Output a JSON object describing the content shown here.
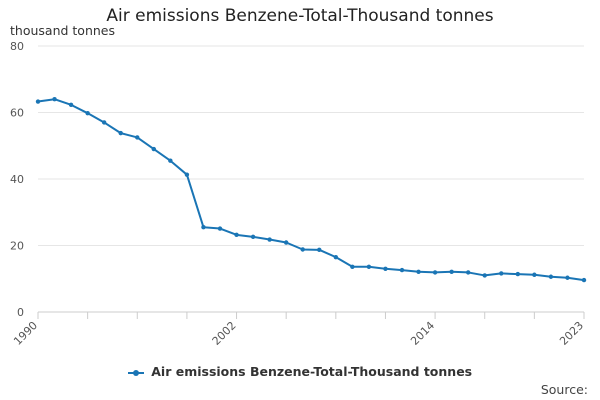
{
  "chart_data": {
    "type": "line",
    "title": "Air emissions Benzene-Total-Thousand tonnes",
    "ylabel": "thousand tonnes",
    "xlabel": "",
    "ylim": [
      0,
      80
    ],
    "yticks": [
      0,
      20,
      40,
      60,
      80
    ],
    "xlim": [
      1990,
      2023
    ],
    "xtick_labels": [
      "1990",
      "2002",
      "2014",
      "2023"
    ],
    "x": [
      1990,
      1991,
      1992,
      1993,
      1994,
      1995,
      1996,
      1997,
      1998,
      1999,
      2000,
      2001,
      2002,
      2003,
      2004,
      2005,
      2006,
      2007,
      2008,
      2009,
      2010,
      2011,
      2012,
      2013,
      2014,
      2015,
      2016,
      2017,
      2018,
      2019,
      2020,
      2021,
      2022,
      2023
    ],
    "series": [
      {
        "name": "Air emissions Benzene-Total-Thousand tonnes",
        "color": "#1a75b5",
        "values": [
          63.3,
          64.0,
          62.3,
          59.8,
          57.0,
          53.8,
          52.5,
          49.0,
          45.5,
          41.3,
          25.5,
          25.1,
          23.2,
          22.6,
          21.8,
          20.9,
          18.8,
          18.7,
          16.5,
          13.6,
          13.6,
          13.0,
          12.6,
          12.1,
          11.9,
          12.1,
          11.9,
          11.0,
          11.6,
          11.4,
          11.2,
          10.6,
          10.3,
          9.6
        ]
      }
    ],
    "legend": "bottom-center",
    "source_label": "Source:"
  }
}
